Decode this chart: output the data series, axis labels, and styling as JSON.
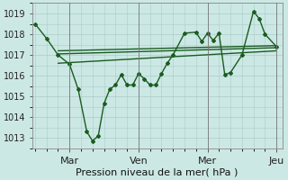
{
  "bg_color": "#cce8e4",
  "grid_color": "#aaccca",
  "line_color": "#1a5c20",
  "xlabel": "Pression niveau de la mer( hPa )",
  "ylim": [
    1012.5,
    1019.5
  ],
  "yticks": [
    1013,
    1014,
    1015,
    1016,
    1017,
    1018,
    1019
  ],
  "xlim": [
    -0.5,
    43
  ],
  "vline_positions": [
    6,
    18,
    30,
    42
  ],
  "xtick_pos": [
    6,
    18,
    30,
    42
  ],
  "xtick_labels": [
    "Mar",
    "Ven",
    "Mer",
    "Jeu"
  ],
  "main_x": [
    0,
    2,
    4,
    6,
    7.5,
    9,
    10,
    11,
    12,
    13,
    14,
    15,
    16,
    17,
    18,
    19,
    20,
    21,
    22,
    23,
    24,
    26,
    28,
    29,
    30,
    31,
    32,
    33,
    34,
    36,
    38,
    39,
    40,
    42
  ],
  "main_y": [
    1018.5,
    1017.8,
    1017.0,
    1016.55,
    1015.35,
    1013.3,
    1012.85,
    1013.1,
    1014.65,
    1015.35,
    1015.55,
    1016.05,
    1015.55,
    1015.55,
    1016.1,
    1015.85,
    1015.55,
    1015.55,
    1016.1,
    1016.6,
    1017.0,
    1018.05,
    1018.1,
    1017.65,
    1018.05,
    1017.7,
    1018.05,
    1016.05,
    1016.15,
    1017.0,
    1019.1,
    1018.75,
    1018.0,
    1017.4
  ],
  "trend1_x": [
    4,
    42
  ],
  "trend1_y": [
    1017.05,
    1017.35
  ],
  "trend2_x": [
    4,
    42
  ],
  "trend2_y": [
    1017.2,
    1017.45
  ],
  "trend3_x": [
    4,
    42
  ],
  "trend3_y": [
    1016.6,
    1017.2
  ],
  "marker_style": "D",
  "marker_size": 2.0,
  "line_width": 1.0,
  "ylabel_fontsize": 7,
  "xlabel_fontsize": 8,
  "xtick_fontsize": 8
}
